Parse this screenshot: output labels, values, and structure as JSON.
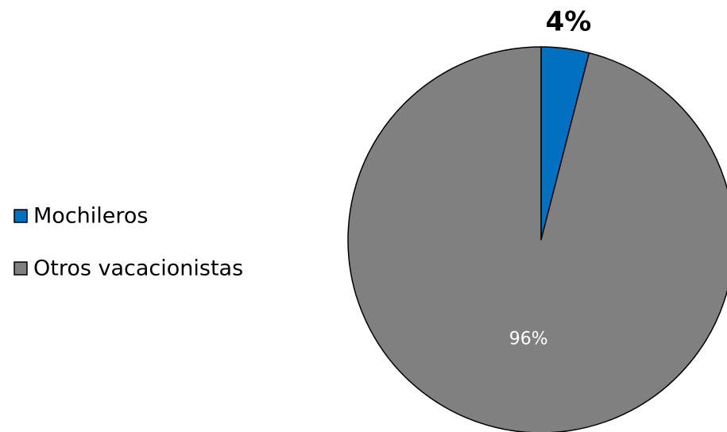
{
  "chart_data": {
    "type": "pie",
    "categories": [
      "Mochileros",
      "Otros vacacionistas"
    ],
    "values": [
      4,
      96
    ],
    "data_labels": [
      "4%",
      "96%"
    ],
    "colors": [
      "#0070c0",
      "#808080"
    ],
    "legend_position": "left",
    "start_angle": "12 o'clock",
    "direction": "clockwise"
  }
}
